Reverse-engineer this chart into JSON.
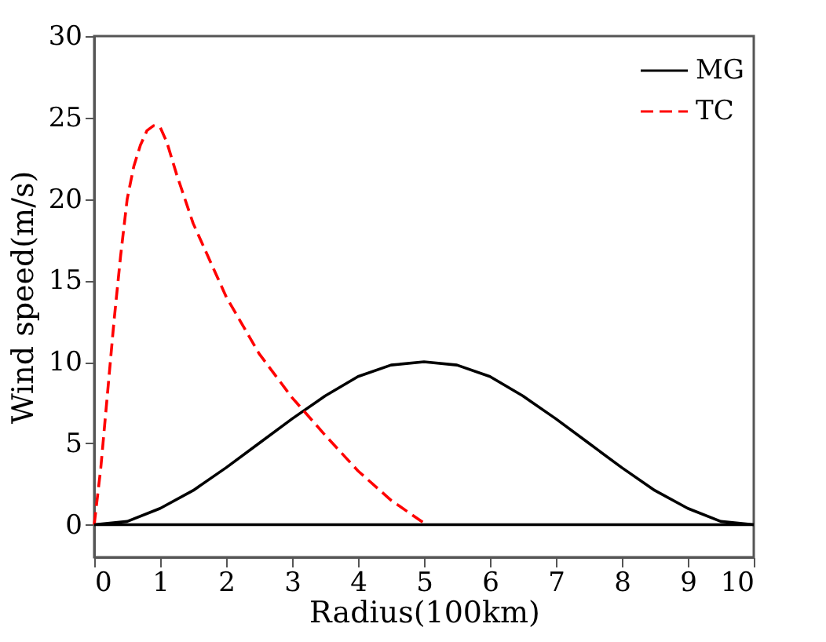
{
  "chart_data": {
    "type": "line",
    "xlabel": "Radius(100km)",
    "ylabel": "Wind speed(m/s)",
    "xlim": [
      0,
      10
    ],
    "ylim": [
      -2,
      30
    ],
    "xticks": [
      0,
      1,
      2,
      3,
      4,
      5,
      6,
      7,
      8,
      9,
      10
    ],
    "yticks": [
      0,
      5,
      10,
      15,
      20,
      25,
      30
    ],
    "grid": false,
    "legend": "top right",
    "marker": "none",
    "ref_lines": [
      {
        "axis": "y",
        "value": 0,
        "color": "#000000",
        "line_style": "solid"
      }
    ],
    "series": [
      {
        "name": "MG",
        "color": "#000000",
        "line_style": "solid",
        "x": [
          0,
          0.5,
          1,
          1.5,
          2,
          2.5,
          3,
          3.5,
          4,
          4.5,
          5,
          5.5,
          6,
          6.5,
          7,
          7.5,
          8,
          8.5,
          9,
          9.5,
          10
        ],
        "values": [
          0,
          0.2,
          1.0,
          2.1,
          3.5,
          5.0,
          6.5,
          7.9,
          9.1,
          9.8,
          10,
          9.8,
          9.1,
          7.9,
          6.5,
          5.0,
          3.5,
          2.1,
          1.0,
          0.2,
          0
        ]
      },
      {
        "name": "TC",
        "color": "#ff0000",
        "line_style": "dashed",
        "x": [
          0,
          0.1,
          0.2,
          0.3,
          0.4,
          0.5,
          0.6,
          0.7,
          0.8,
          0.9,
          1.0,
          1.1,
          1.25,
          1.5,
          2,
          2.5,
          3,
          3.5,
          4,
          4.5,
          5
        ],
        "values": [
          0,
          3.5,
          8,
          12.5,
          16.5,
          20,
          22,
          23.3,
          24.2,
          24.5,
          24.4,
          23.5,
          21.5,
          18.5,
          14,
          10.5,
          7.8,
          5.5,
          3.3,
          1.5,
          0.1
        ]
      }
    ]
  }
}
